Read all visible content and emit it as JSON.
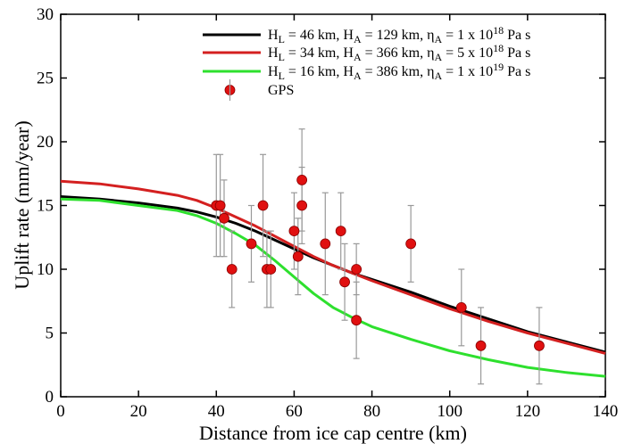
{
  "chart_data": {
    "type": "line",
    "xlabel": "Distance from ice cap centre (km)",
    "ylabel": "Uplift rate (mm/year)",
    "xlim": [
      0,
      140
    ],
    "ylim": [
      0,
      30
    ],
    "xticks": [
      0,
      20,
      40,
      60,
      80,
      100,
      120,
      140
    ],
    "yticks": [
      0,
      5,
      10,
      15,
      20,
      25,
      30
    ],
    "grid": false,
    "legend_position": "top-right",
    "series": [
      {
        "legend": {
          "H_L": "46 km",
          "H_A": "129 km",
          "eta_mant": "1 x 10",
          "eta_exp": "18",
          "unit": "Pa s"
        },
        "color": "#000000",
        "x": [
          0,
          10,
          20,
          30,
          35,
          40,
          45,
          50,
          55,
          60,
          65,
          70,
          75,
          80,
          90,
          100,
          110,
          120,
          130,
          140
        ],
        "y": [
          15.7,
          15.5,
          15.2,
          14.8,
          14.5,
          14.1,
          13.6,
          13.0,
          12.3,
          11.6,
          10.9,
          10.3,
          9.7,
          9.2,
          8.2,
          7.1,
          6.1,
          5.1,
          4.3,
          3.5
        ]
      },
      {
        "legend": {
          "H_L": "34 km",
          "H_A": "366 km",
          "eta_mant": "5 x 10",
          "eta_exp": "18",
          "unit": "Pa s"
        },
        "color": "#d42020",
        "x": [
          0,
          10,
          20,
          30,
          35,
          40,
          45,
          50,
          55,
          60,
          65,
          70,
          75,
          80,
          90,
          100,
          110,
          120,
          130,
          140
        ],
        "y": [
          16.9,
          16.7,
          16.3,
          15.8,
          15.4,
          14.8,
          14.1,
          13.4,
          12.6,
          11.8,
          11.0,
          10.3,
          9.7,
          9.1,
          8.0,
          6.9,
          5.9,
          5.0,
          4.2,
          3.4
        ]
      },
      {
        "legend": {
          "H_L": "16 km",
          "H_A": "386 km",
          "eta_mant": "1 x 10",
          "eta_exp": "19",
          "unit": "Pa s"
        },
        "color": "#2ee02e",
        "x": [
          0,
          10,
          20,
          30,
          35,
          40,
          45,
          50,
          55,
          60,
          65,
          70,
          75,
          80,
          90,
          100,
          110,
          120,
          130,
          140
        ],
        "y": [
          15.5,
          15.4,
          15.0,
          14.6,
          14.2,
          13.6,
          12.8,
          11.9,
          10.7,
          9.4,
          8.1,
          7.0,
          6.2,
          5.5,
          4.5,
          3.6,
          2.9,
          2.3,
          1.9,
          1.6
        ]
      }
    ],
    "gps": {
      "legend": "GPS",
      "color": "#e01010",
      "points": [
        {
          "x": 40,
          "y": 15,
          "err": 4
        },
        {
          "x": 41,
          "y": 15,
          "err": 4
        },
        {
          "x": 42,
          "y": 14,
          "err": 3
        },
        {
          "x": 44,
          "y": 10,
          "err": 3
        },
        {
          "x": 49,
          "y": 12,
          "err": 3
        },
        {
          "x": 52,
          "y": 15,
          "err": 4
        },
        {
          "x": 53,
          "y": 10,
          "err": 3
        },
        {
          "x": 54,
          "y": 10,
          "err": 3
        },
        {
          "x": 60,
          "y": 13,
          "err": 3
        },
        {
          "x": 61,
          "y": 11,
          "err": 3
        },
        {
          "x": 62,
          "y": 15,
          "err": 3
        },
        {
          "x": 62,
          "y": 17,
          "err": 4
        },
        {
          "x": 68,
          "y": 12,
          "err": 4
        },
        {
          "x": 72,
          "y": 13,
          "err": 3
        },
        {
          "x": 73,
          "y": 9,
          "err": 3
        },
        {
          "x": 76,
          "y": 10,
          "err": 2
        },
        {
          "x": 76,
          "y": 6,
          "err": 3
        },
        {
          "x": 90,
          "y": 12,
          "err": 3
        },
        {
          "x": 103,
          "y": 7,
          "err": 3
        },
        {
          "x": 108,
          "y": 4,
          "err": 3
        },
        {
          "x": 123,
          "y": 4,
          "err": 3
        }
      ]
    }
  }
}
